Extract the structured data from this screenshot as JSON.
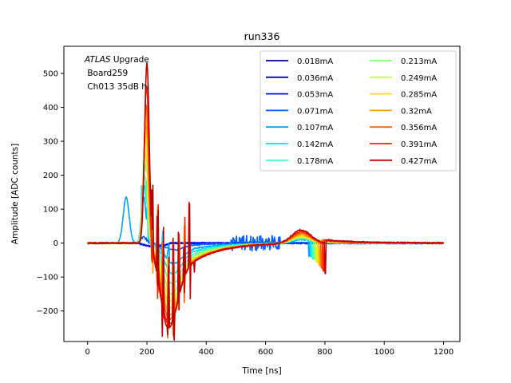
{
  "chart_data": {
    "type": "line",
    "title": "run336",
    "xlabel": "Time [ns]",
    "ylabel": "Amplitude [ADC counts]",
    "xlim": [
      -80,
      1255
    ],
    "ylim": [
      -290,
      580
    ],
    "xticks": [
      "0",
      "200",
      "400",
      "600",
      "800",
      "1000",
      "1200"
    ],
    "xtick_values": [
      0,
      200,
      400,
      600,
      800,
      1000,
      1200
    ],
    "yticks": [
      "−200",
      "−100",
      "0",
      "100",
      "200",
      "300",
      "400",
      "500"
    ],
    "ytick_values": [
      -200,
      -100,
      0,
      100,
      200,
      300,
      400,
      500
    ],
    "annotation": {
      "italic": "ATLAS",
      "line1_rest": " Upgrade",
      "line2": " Board259",
      "line3": " Ch013 35dB hi"
    },
    "legend_position": "upper right",
    "legend_columns": 2,
    "series": [
      {
        "name": "0.018mA",
        "color": "#00008f",
        "peak": 0,
        "trough": 0
      },
      {
        "name": "0.036mA",
        "color": "#0000c8",
        "peak": 0,
        "trough": 0
      },
      {
        "name": "0.053mA",
        "color": "#0010ff",
        "peak": 0,
        "trough": 0
      },
      {
        "name": "0.071mA",
        "color": "#0060ff",
        "peak": 20,
        "trough": -20
      },
      {
        "name": "0.107mA",
        "color": "#00a0ff",
        "peak": 135,
        "trough": -60
      },
      {
        "name": "0.142mA",
        "color": "#00e0ff",
        "peak": 170,
        "trough": -90
      },
      {
        "name": "0.178mA",
        "color": "#40ffc0",
        "peak": 200,
        "trough": -120
      },
      {
        "name": "0.213mA",
        "color": "#80ff80",
        "peak": 230,
        "trough": -150
      },
      {
        "name": "0.249mA",
        "color": "#c0ff40",
        "peak": 260,
        "trough": -170
      },
      {
        "name": "0.285mA",
        "color": "#ffe000",
        "peak": 300,
        "trough": -190
      },
      {
        "name": "0.32mA",
        "color": "#ffa000",
        "peak": 350,
        "trough": -210
      },
      {
        "name": "0.356mA",
        "color": "#ff6000",
        "peak": 410,
        "trough": -225
      },
      {
        "name": "0.391mA",
        "color": "#ff2000",
        "peak": 470,
        "trough": -240
      },
      {
        "name": "0.427mA",
        "color": "#c00000",
        "peak": 540,
        "trough": -250
      }
    ]
  }
}
